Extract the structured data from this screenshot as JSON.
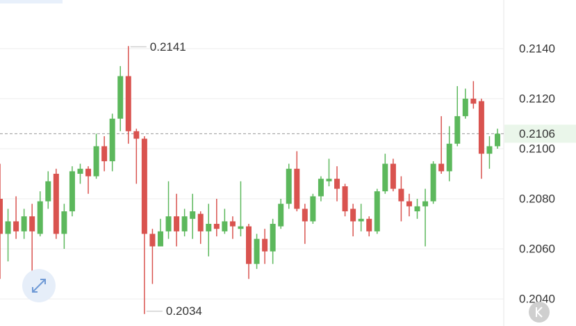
{
  "chart_data": {
    "type": "candlestick",
    "open": [
      0.208,
      0.2066,
      0.2071,
      0.2067,
      0.2073,
      0.2066,
      0.2079,
      0.209,
      0.2066,
      0.2075,
      0.209,
      0.2092,
      0.2089,
      0.2101,
      0.2095,
      0.2112,
      0.2129,
      0.2107,
      0.2104,
      0.2066,
      0.2061,
      0.2067,
      0.2073,
      0.2067,
      0.2072,
      0.2074,
      0.2067,
      0.207,
      0.2067,
      0.2071,
      0.2068,
      0.2069,
      0.2054,
      0.2064,
      0.2059,
      0.2069,
      0.2078,
      0.2092,
      0.2076,
      0.2071,
      0.2081,
      0.2087,
      0.2088,
      0.2085,
      0.2076,
      0.2071,
      0.2072,
      0.2067,
      0.2083,
      0.2094,
      0.2084,
      0.2079,
      0.2075,
      0.2077,
      0.2079,
      0.2094,
      0.2091,
      0.2102,
      0.2113,
      0.212,
      0.2119,
      0.2098,
      0.2101
    ],
    "high": [
      0.2094,
      0.2076,
      0.2081,
      0.2076,
      0.2078,
      0.2083,
      0.2091,
      0.2092,
      0.2078,
      0.2093,
      0.2094,
      0.2093,
      0.2106,
      0.2105,
      0.2114,
      0.2133,
      0.2141,
      0.2108,
      0.2105,
      0.2068,
      0.2072,
      0.2087,
      0.2082,
      0.2076,
      0.2082,
      0.2075,
      0.2078,
      0.208,
      0.2076,
      0.2073,
      0.2087,
      0.207,
      0.2066,
      0.2068,
      0.2072,
      0.208,
      0.2094,
      0.2099,
      0.2078,
      0.2082,
      0.2089,
      0.2096,
      0.2093,
      0.2086,
      0.2078,
      0.2078,
      0.2073,
      0.2084,
      0.2098,
      0.2096,
      0.2089,
      0.2082,
      0.208,
      0.2084,
      0.2095,
      0.2113,
      0.2109,
      0.2125,
      0.2124,
      0.2127,
      0.212,
      0.2105,
      0.2108
    ],
    "low": [
      0.2048,
      0.2055,
      0.2064,
      0.2064,
      0.2051,
      0.2065,
      0.2076,
      0.2064,
      0.206,
      0.2073,
      0.2086,
      0.2082,
      0.2088,
      0.2091,
      0.2091,
      0.2107,
      0.2102,
      0.2086,
      0.2034,
      0.2046,
      0.2061,
      0.2064,
      0.2061,
      0.2065,
      0.2064,
      0.2062,
      0.2057,
      0.2065,
      0.2066,
      0.2064,
      0.2065,
      0.2048,
      0.2052,
      0.2054,
      0.2054,
      0.2068,
      0.2076,
      0.2075,
      0.2062,
      0.207,
      0.2079,
      0.2085,
      0.2079,
      0.2073,
      0.2065,
      0.2067,
      0.2065,
      0.2066,
      0.2082,
      0.2083,
      0.2071,
      0.2073,
      0.2072,
      0.2061,
      0.2078,
      0.209,
      0.2087,
      0.2101,
      0.2112,
      0.2116,
      0.2088,
      0.2092,
      0.21
    ],
    "close": [
      0.2066,
      0.2071,
      0.2067,
      0.2073,
      0.2067,
      0.2079,
      0.2087,
      0.2066,
      0.2075,
      0.2091,
      0.2092,
      0.2089,
      0.2101,
      0.2095,
      0.2112,
      0.2129,
      0.2107,
      0.2104,
      0.2066,
      0.2061,
      0.2067,
      0.2073,
      0.2067,
      0.2073,
      0.2075,
      0.2067,
      0.207,
      0.2068,
      0.2071,
      0.2069,
      0.2069,
      0.2054,
      0.2064,
      0.2059,
      0.207,
      0.2078,
      0.2092,
      0.2076,
      0.2071,
      0.2081,
      0.2088,
      0.2088,
      0.2084,
      0.2075,
      0.2071,
      0.2072,
      0.2067,
      0.2083,
      0.2094,
      0.2084,
      0.2079,
      0.2077,
      0.2077,
      0.2079,
      0.2094,
      0.2091,
      0.2102,
      0.2113,
      0.212,
      0.2118,
      0.2098,
      0.2101,
      0.2106
    ],
    "up_color": "#5cb85c",
    "down_color": "#d9534f",
    "ylim": [
      0.20292,
      0.21594
    ],
    "yticks": [
      {
        "value": 0.204,
        "label": "0.2040"
      },
      {
        "value": 0.206,
        "label": "0.2060"
      },
      {
        "value": 0.208,
        "label": "0.2080"
      },
      {
        "value": 0.21,
        "label": "0.2100"
      },
      {
        "value": 0.212,
        "label": "0.2120"
      },
      {
        "value": 0.214,
        "label": "0.2140"
      }
    ],
    "grid": true
  }
}
